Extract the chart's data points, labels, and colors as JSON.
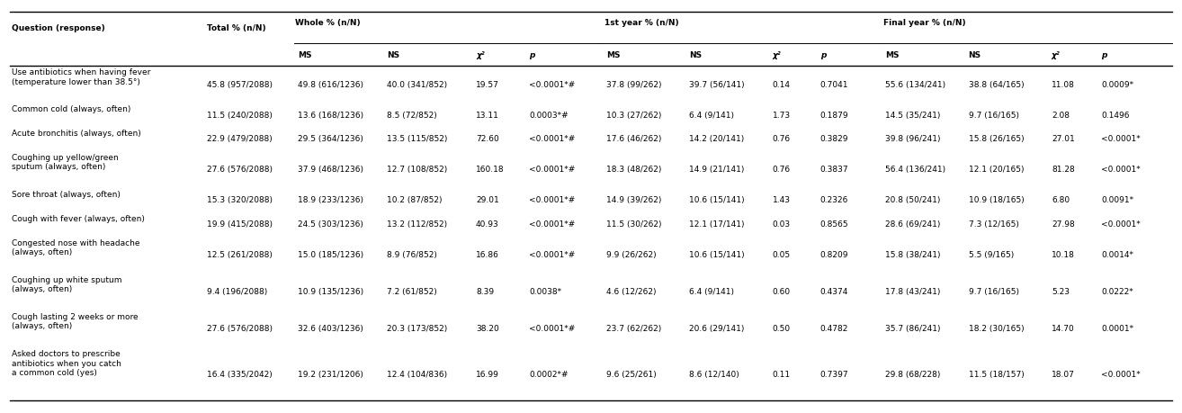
{
  "rows": [
    [
      "Use antibiotics when having fever\n(temperature lower than 38.5°)",
      "45.8 (957/2088)",
      "49.8 (616/1236)",
      "40.0 (341/852)",
      "19.57",
      "<0.0001*#",
      "37.8 (99/262)",
      "39.7 (56/141)",
      "0.14",
      "0.7041",
      "55.6 (134/241)",
      "38.8 (64/165)",
      "11.08",
      "0.0009*"
    ],
    [
      "Common cold (always, often)",
      "11.5 (240/2088)",
      "13.6 (168/1236)",
      "8.5 (72/852)",
      "13.11",
      "0.0003*#",
      "10.3 (27/262)",
      "6.4 (9/141)",
      "1.73",
      "0.1879",
      "14.5 (35/241)",
      "9.7 (16/165)",
      "2.08",
      "0.1496"
    ],
    [
      "Acute bronchitis (always, often)",
      "22.9 (479/2088)",
      "29.5 (364/1236)",
      "13.5 (115/852)",
      "72.60",
      "<0.0001*#",
      "17.6 (46/262)",
      "14.2 (20/141)",
      "0.76",
      "0.3829",
      "39.8 (96/241)",
      "15.8 (26/165)",
      "27.01",
      "<0.0001*"
    ],
    [
      "Coughing up yellow/green\nsputum (always, often)",
      "27.6 (576/2088)",
      "37.9 (468/1236)",
      "12.7 (108/852)",
      "160.18",
      "<0.0001*#",
      "18.3 (48/262)",
      "14.9 (21/141)",
      "0.76",
      "0.3837",
      "56.4 (136/241)",
      "12.1 (20/165)",
      "81.28",
      "<0.0001*"
    ],
    [
      "Sore throat (always, often)",
      "15.3 (320/2088)",
      "18.9 (233/1236)",
      "10.2 (87/852)",
      "29.01",
      "<0.0001*#",
      "14.9 (39/262)",
      "10.6 (15/141)",
      "1.43",
      "0.2326",
      "20.8 (50/241)",
      "10.9 (18/165)",
      "6.80",
      "0.0091*"
    ],
    [
      "Cough with fever (always, often)",
      "19.9 (415/2088)",
      "24.5 (303/1236)",
      "13.2 (112/852)",
      "40.93",
      "<0.0001*#",
      "11.5 (30/262)",
      "12.1 (17/141)",
      "0.03",
      "0.8565",
      "28.6 (69/241)",
      "7.3 (12/165)",
      "27.98",
      "<0.0001*"
    ],
    [
      "Congested nose with headache\n(always, often)",
      "12.5 (261/2088)",
      "15.0 (185/1236)",
      "8.9 (76/852)",
      "16.86",
      "<0.0001*#",
      "9.9 (26/262)",
      "10.6 (15/141)",
      "0.05",
      "0.8209",
      "15.8 (38/241)",
      "5.5 (9/165)",
      "10.18",
      "0.0014*"
    ],
    [
      "Coughing up white sputum\n(always, often)",
      "9.4 (196/2088)",
      "10.9 (135/1236)",
      "7.2 (61/852)",
      "8.39",
      "0.0038*",
      "4.6 (12/262)",
      "6.4 (9/141)",
      "0.60",
      "0.4374",
      "17.8 (43/241)",
      "9.7 (16/165)",
      "5.23",
      "0.0222*"
    ],
    [
      "Cough lasting 2 weeks or more\n(always, often)",
      "27.6 (576/2088)",
      "32.6 (403/1236)",
      "20.3 (173/852)",
      "38.20",
      "<0.0001*#",
      "23.7 (62/262)",
      "20.6 (29/141)",
      "0.50",
      "0.4782",
      "35.7 (86/241)",
      "18.2 (30/165)",
      "14.70",
      "0.0001*"
    ],
    [
      "Asked doctors to prescribe\nantibiotics when you catch\na common cold (yes)",
      "16.4 (335/2042)",
      "19.2 (231/1206)",
      "12.4 (104/836)",
      "16.99",
      "0.0002*#",
      "9.6 (25/261)",
      "8.6 (12/140)",
      "0.11",
      "0.7397",
      "29.8 (68/228)",
      "11.5 (18/157)",
      "18.07",
      "<0.0001*"
    ]
  ],
  "col_widths_rel": [
    16.5,
    7.5,
    7.5,
    7.5,
    4.5,
    6.5,
    7.0,
    7.0,
    4.0,
    5.5,
    7.0,
    7.0,
    4.2,
    6.3
  ],
  "fontsize": 6.5,
  "ml": 0.008,
  "mr": 0.008,
  "mt": 0.97,
  "mb": 0.03
}
